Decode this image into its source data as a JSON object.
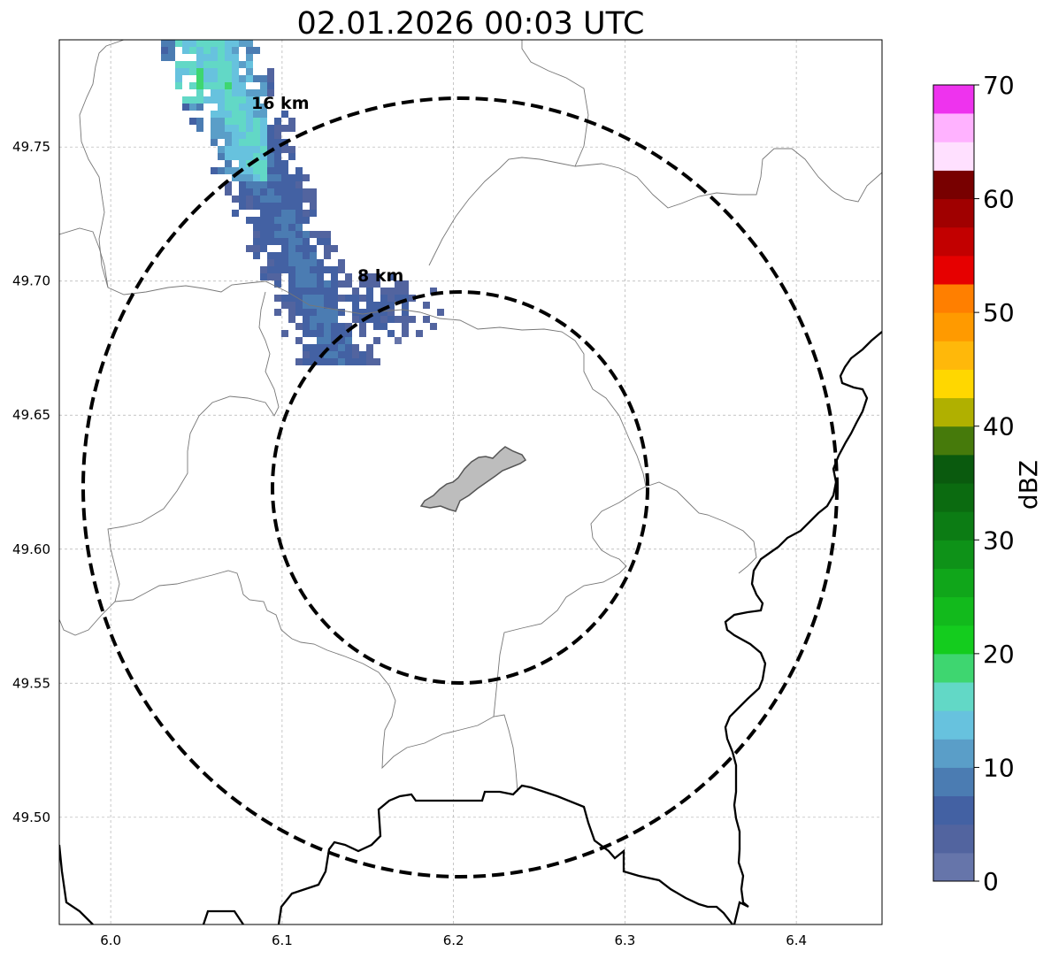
{
  "title": "02.01.2026 00:03 UTC",
  "map": {
    "xticks": [
      "6.0",
      "6.1",
      "6.2",
      "6.3",
      "6.4"
    ],
    "xtick_values": [
      6.0,
      6.1,
      6.2,
      6.3,
      6.4
    ],
    "yticks": [
      "49.75",
      "49.70",
      "49.65",
      "49.60",
      "49.55",
      "49.50"
    ],
    "ytick_values": [
      49.75,
      49.7,
      49.65,
      49.6,
      49.55,
      49.5
    ],
    "xlim": [
      5.97,
      6.45
    ],
    "ylim": [
      49.46,
      49.79
    ],
    "grid": true,
    "center": {
      "lon": 6.204,
      "lat": 49.623
    },
    "rings": [
      {
        "label": "8 km",
        "label_lon": 6.143,
        "label_lat": 49.7
      },
      {
        "label": "16 km",
        "label_lon": 6.083,
        "label_lat": 49.764
      }
    ]
  },
  "colorbar": {
    "label": "dBZ",
    "ticks": [
      "0",
      "10",
      "20",
      "30",
      "40",
      "50",
      "60",
      "70"
    ],
    "range": [
      0,
      70
    ],
    "bins": [
      {
        "from": 0,
        "to": 2.5,
        "color": "#6675aa"
      },
      {
        "from": 2.5,
        "to": 5,
        "color": "#52649f"
      },
      {
        "from": 5,
        "to": 7.5,
        "color": "#4361a3"
      },
      {
        "from": 7.5,
        "to": 10,
        "color": "#4b7cb2"
      },
      {
        "from": 10,
        "to": 12.5,
        "color": "#5a9ec8"
      },
      {
        "from": 12.5,
        "to": 15,
        "color": "#67c2de"
      },
      {
        "from": 15,
        "to": 17.5,
        "color": "#62d8c6"
      },
      {
        "from": 17.5,
        "to": 20,
        "color": "#3ed670"
      },
      {
        "from": 20,
        "to": 22.5,
        "color": "#14cc1e"
      },
      {
        "from": 22.5,
        "to": 25,
        "color": "#12ba1c"
      },
      {
        "from": 25,
        "to": 27.5,
        "color": "#10a61a"
      },
      {
        "from": 27.5,
        "to": 30,
        "color": "#0e9218"
      },
      {
        "from": 30,
        "to": 32.5,
        "color": "#0c7c14"
      },
      {
        "from": 32.5,
        "to": 35,
        "color": "#0b6b10"
      },
      {
        "from": 35,
        "to": 37.5,
        "color": "#0a5a0e"
      },
      {
        "from": 37.5,
        "to": 40,
        "color": "#467a0b"
      },
      {
        "from": 40,
        "to": 42.5,
        "color": "#b0b000"
      },
      {
        "from": 42.5,
        "to": 45,
        "color": "#ffd700"
      },
      {
        "from": 45,
        "to": 47.5,
        "color": "#ffb80a"
      },
      {
        "from": 47.5,
        "to": 50,
        "color": "#ff9a00"
      },
      {
        "from": 50,
        "to": 52.5,
        "color": "#ff7f00"
      },
      {
        "from": 52.5,
        "to": 55,
        "color": "#e60000"
      },
      {
        "from": 55,
        "to": 57.5,
        "color": "#c20000"
      },
      {
        "from": 57.5,
        "to": 60,
        "color": "#a00000"
      },
      {
        "from": 60,
        "to": 62.5,
        "color": "#780000"
      },
      {
        "from": 62.5,
        "to": 65,
        "color": "#ffe0ff"
      },
      {
        "from": 65,
        "to": 67.5,
        "color": "#ffb2ff"
      },
      {
        "from": 67.5,
        "to": 70,
        "color": "#ff66ff"
      }
    ],
    "top_color": "#ee33ee"
  },
  "colors": {
    "city_fill": "#bdbdbd",
    "city_edge": "#555555",
    "border": "#000000",
    "admin": "#777777",
    "grid": "#b0b0b0"
  }
}
